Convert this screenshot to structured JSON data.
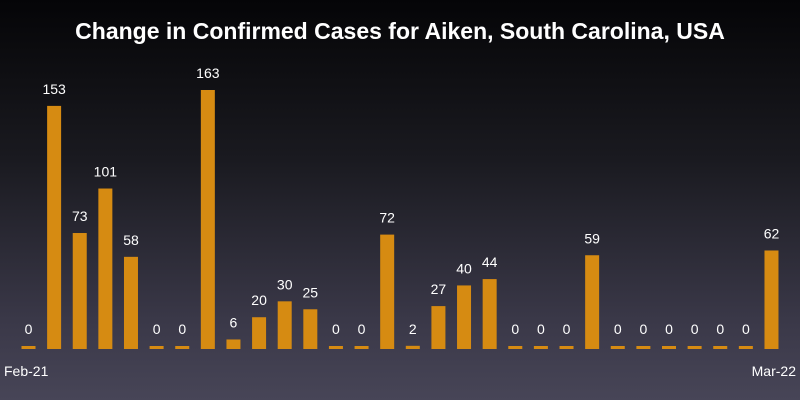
{
  "chart_data": {
    "type": "bar",
    "title": "Change in Confirmed Cases for Aiken, South Carolina, USA",
    "x_tick_labels": [
      "Feb-21",
      "Mar-22"
    ],
    "values": [
      0,
      153,
      73,
      101,
      58,
      0,
      0,
      163,
      6,
      20,
      30,
      25,
      0,
      0,
      72,
      2,
      27,
      40,
      44,
      0,
      0,
      0,
      59,
      0,
      0,
      0,
      0,
      0,
      0,
      62
    ],
    "ylim": [
      0,
      163
    ],
    "grid": false,
    "legend": "none",
    "colors": {
      "bar": "#d68b12",
      "text": "#ffffff"
    }
  }
}
